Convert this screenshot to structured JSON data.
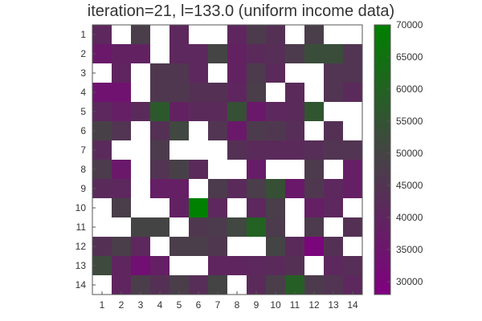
{
  "chart_data": {
    "type": "heatmap",
    "title": "iteration=21, l=133.0 (uniform income data)",
    "xlabel": "",
    "ylabel": "",
    "x_ticks": [
      1,
      2,
      3,
      4,
      5,
      6,
      7,
      8,
      9,
      10,
      11,
      12,
      13,
      14
    ],
    "y_ticks": [
      1,
      2,
      3,
      4,
      5,
      6,
      7,
      8,
      9,
      10,
      11,
      12,
      13,
      14
    ],
    "empty_color": "#ffffff",
    "colorbar": {
      "range": [
        28000,
        70000
      ],
      "ticks": [
        30000,
        35000,
        40000,
        45000,
        50000,
        55000,
        60000,
        65000,
        70000
      ],
      "colormap": [
        {
          "value": 28000,
          "color": "#800080"
        },
        {
          "value": 50000,
          "color": "#444444"
        },
        {
          "value": 70000,
          "color": "#008000"
        }
      ]
    },
    "grid": [
      [
        41000,
        null,
        48000,
        null,
        41000,
        null,
        null,
        40000,
        47000,
        44000,
        null,
        48000,
        null,
        null
      ],
      [
        36000,
        39000,
        39000,
        null,
        41000,
        41000,
        50000,
        39000,
        42000,
        43000,
        47000,
        53000,
        53000,
        45000
      ],
      [
        null,
        40000,
        null,
        46000,
        46000,
        41000,
        null,
        39000,
        47000,
        42000,
        null,
        null,
        45000,
        45000
      ],
      [
        34000,
        34000,
        null,
        46000,
        46000,
        44000,
        44000,
        40000,
        48000,
        null,
        42000,
        null,
        45000,
        42000
      ],
      [
        41000,
        38000,
        42000,
        57000,
        39000,
        42000,
        42000,
        54000,
        36000,
        41000,
        42000,
        56000,
        null,
        null
      ],
      [
        49000,
        45000,
        null,
        44000,
        51000,
        null,
        45000,
        36000,
        47000,
        46000,
        43000,
        null,
        44000,
        null
      ],
      [
        42000,
        null,
        null,
        47000,
        null,
        null,
        null,
        44000,
        42000,
        42000,
        42000,
        43000,
        45000,
        45000
      ],
      [
        47000,
        36000,
        null,
        45000,
        49000,
        42000,
        null,
        null,
        37000,
        null,
        null,
        47000,
        null,
        38000
      ],
      [
        42000,
        41000,
        null,
        38000,
        38000,
        null,
        47000,
        42000,
        48000,
        54000,
        36000,
        46000,
        41000,
        38000
      ],
      [
        null,
        48000,
        null,
        null,
        39000,
        70000,
        41000,
        null,
        41000,
        48000,
        null,
        38000,
        41000,
        null
      ],
      [
        null,
        null,
        50000,
        50000,
        null,
        46000,
        47000,
        51000,
        60000,
        47000,
        null,
        47000,
        null,
        44000
      ],
      [
        44000,
        48000,
        41000,
        null,
        48000,
        48000,
        46000,
        null,
        null,
        50000,
        42000,
        30000,
        44000,
        null
      ],
      [
        52000,
        40000,
        33000,
        38000,
        null,
        null,
        40000,
        40000,
        41000,
        42000,
        44000,
        null,
        41000,
        43000
      ],
      [
        null,
        40000,
        48000,
        44000,
        48000,
        43000,
        50000,
        null,
        42000,
        48000,
        59000,
        47000,
        45000,
        41000
      ]
    ]
  }
}
